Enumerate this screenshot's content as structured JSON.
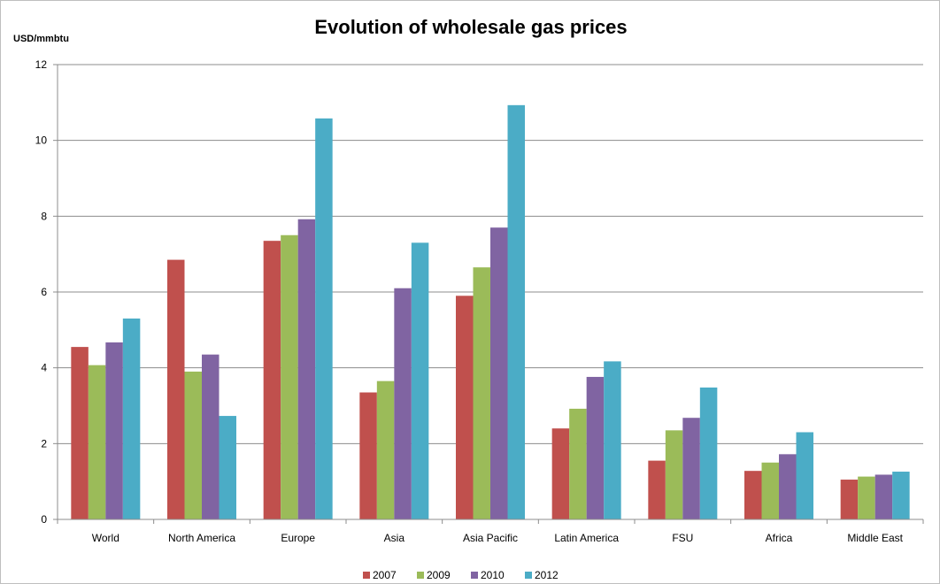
{
  "chart_data": {
    "type": "bar",
    "title": "Evolution of wholesale gas prices",
    "ylabel": "USD/mmbtu",
    "xlabel": "",
    "ylim": [
      0,
      12
    ],
    "yticks": [
      0,
      2,
      4,
      6,
      8,
      10,
      12
    ],
    "grid": true,
    "legend_position": "bottom",
    "categories": [
      "World",
      "North America",
      "Europe",
      "Asia",
      "Asia Pacific",
      "Latin America",
      "FSU",
      "Africa",
      "Middle East"
    ],
    "series": [
      {
        "name": "2007",
        "color": "#C0504D",
        "values": [
          4.55,
          6.85,
          7.35,
          3.35,
          5.9,
          2.4,
          1.55,
          1.28,
          1.05
        ]
      },
      {
        "name": "2009",
        "color": "#9BBB59",
        "values": [
          4.07,
          3.9,
          7.5,
          3.65,
          6.65,
          2.92,
          2.35,
          1.5,
          1.13
        ]
      },
      {
        "name": "2010",
        "color": "#8064A2",
        "values": [
          4.67,
          4.35,
          7.92,
          6.1,
          7.7,
          3.76,
          2.68,
          1.72,
          1.18
        ]
      },
      {
        "name": "2012",
        "color": "#4BACC6",
        "values": [
          5.3,
          2.73,
          10.58,
          7.3,
          10.93,
          4.17,
          3.48,
          2.3,
          1.26
        ]
      }
    ]
  }
}
